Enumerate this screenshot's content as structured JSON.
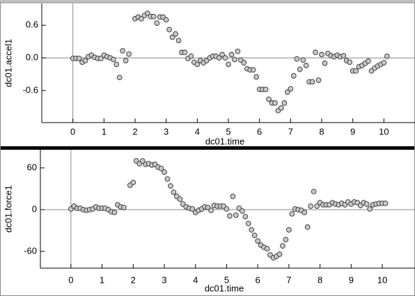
{
  "chart_data": [
    {
      "type": "scatter",
      "x_label": "dc01.time",
      "y_label": "dc01.accel1",
      "color": "#c8c8c8",
      "x": [
        0,
        0.1,
        0.2,
        0.3,
        0.4,
        0.5,
        0.6,
        0.7,
        0.8,
        0.9,
        1.0,
        1.1,
        1.2,
        1.3,
        1.4,
        1.5,
        1.6,
        1.7,
        1.8,
        2.0,
        2.1,
        2.2,
        2.3,
        2.4,
        2.5,
        2.6,
        2.7,
        2.8,
        2.9,
        3.0,
        3.1,
        3.2,
        3.3,
        3.4,
        3.5,
        3.6,
        3.7,
        3.8,
        3.9,
        4.0,
        4.1,
        4.2,
        4.3,
        4.4,
        4.5,
        4.6,
        4.7,
        4.8,
        4.9,
        5.0,
        5.1,
        5.2,
        5.3,
        5.4,
        5.5,
        5.6,
        5.7,
        5.8,
        5.9,
        6.0,
        6.1,
        6.2,
        6.3,
        6.4,
        6.5,
        6.6,
        6.7,
        6.8,
        6.9,
        7.0,
        7.1,
        7.2,
        7.3,
        7.4,
        7.5,
        7.6,
        7.7,
        7.8,
        7.9,
        8.0,
        8.1,
        8.2,
        8.3,
        8.4,
        8.5,
        8.6,
        8.7,
        8.8,
        8.9,
        9.0,
        9.1,
        9.2,
        9.3,
        9.4,
        9.5,
        9.6,
        9.7,
        9.8,
        9.9,
        10.0,
        10.1
      ],
      "values": [
        -0.01,
        -0.01,
        -0.01,
        -0.08,
        -0.05,
        0.02,
        0.05,
        0.01,
        -0.01,
        -0.01,
        0.05,
        0.02,
        0,
        -0.03,
        -0.12,
        -0.36,
        0.13,
        -0.05,
        0.07,
        0.72,
        0.75,
        0.72,
        0.78,
        0.82,
        0.76,
        0.76,
        0.64,
        0.75,
        0.75,
        0.7,
        0.52,
        0.38,
        0.44,
        0.32,
        0.1,
        0.1,
        -0.01,
        0.03,
        -0.08,
        -0.12,
        -0.05,
        -0.09,
        -0.05,
        0,
        0.03,
        0.03,
        0,
        0.06,
        0,
        -0.12,
        0.06,
        -0.03,
        0.12,
        -0.04,
        -0.09,
        -0.2,
        -0.22,
        -0.22,
        -0.35,
        -0.58,
        -0.58,
        -0.58,
        -0.76,
        -0.83,
        -0.83,
        -0.97,
        -0.92,
        -0.83,
        -0.63,
        -0.57,
        -0.33,
        -0.02,
        -0.21,
        -0.04,
        -0.14,
        -0.44,
        -0.44,
        0.1,
        -0.41,
        0.06,
        -0.1,
        0.08,
        0.04,
        0.02,
        0.05,
        0.02,
        0.04,
        -0.05,
        -0.08,
        -0.24,
        -0.24,
        -0.16,
        -0.14,
        -0.1,
        -0.06,
        -0.24,
        -0.19,
        -0.15,
        -0.12,
        -0.09,
        0.03
      ],
      "xlim": [
        -1.0,
        11.0
      ],
      "ylim": [
        -1.19,
        1.0
      ],
      "xticks": [
        0,
        1,
        2,
        3,
        4,
        5,
        6,
        7,
        8,
        9,
        10
      ],
      "yticks": [
        -0.6,
        {
          "value": 0,
          "label": "0.0"
        },
        0.6
      ]
    },
    {
      "type": "scatter",
      "x_label": "dc01.time",
      "y_label": "dc01.force1",
      "color": "#c8c8c8",
      "x": [
        0,
        0.1,
        0.2,
        0.3,
        0.4,
        0.5,
        0.6,
        0.7,
        0.8,
        0.9,
        1.0,
        1.1,
        1.2,
        1.3,
        1.4,
        1.5,
        1.6,
        1.7,
        1.9,
        2.0,
        2.1,
        2.2,
        2.3,
        2.4,
        2.5,
        2.6,
        2.7,
        2.8,
        2.9,
        3.0,
        3.1,
        3.2,
        3.3,
        3.4,
        3.5,
        3.6,
        3.7,
        3.8,
        3.9,
        4.0,
        4.1,
        4.2,
        4.3,
        4.4,
        4.5,
        4.6,
        4.7,
        4.8,
        4.9,
        5.0,
        5.1,
        5.2,
        5.3,
        5.4,
        5.5,
        5.6,
        5.7,
        5.8,
        5.9,
        6.0,
        6.1,
        6.2,
        6.3,
        6.4,
        6.5,
        6.6,
        6.7,
        6.8,
        6.9,
        7.0,
        7.1,
        7.2,
        7.3,
        7.4,
        7.5,
        7.6,
        7.7,
        7.8,
        7.9,
        8.0,
        8.1,
        8.2,
        8.3,
        8.4,
        8.5,
        8.6,
        8.7,
        8.8,
        8.9,
        9.0,
        9.1,
        9.2,
        9.3,
        9.4,
        9.5,
        9.6,
        9.7,
        9.8,
        9.9,
        10.0,
        10.1
      ],
      "values": [
        1,
        5,
        2,
        2,
        0,
        -1,
        0,
        1,
        4,
        2,
        2,
        2,
        0,
        -3,
        -4,
        7,
        4,
        3,
        35,
        39,
        70,
        66,
        70,
        65,
        66,
        64,
        65,
        61,
        59,
        54,
        44,
        34,
        25,
        19,
        15,
        8,
        4,
        2,
        1,
        -4,
        -1,
        1,
        4,
        3,
        -1,
        6,
        5,
        5,
        5,
        1,
        -9,
        19,
        -8,
        2,
        -2,
        -10,
        -20,
        -29,
        -37,
        -45,
        -51,
        -54,
        -56,
        -65,
        -69,
        -67,
        -64,
        -52,
        -43,
        -29,
        -6,
        1,
        0,
        -1,
        -4,
        -25,
        5,
        26,
        5,
        10,
        7,
        7,
        7,
        10,
        8,
        7,
        9,
        7,
        11,
        8,
        11,
        10,
        6,
        10,
        8,
        1,
        7,
        8,
        9,
        9,
        9
      ],
      "xlim": [
        -0.98,
        11.05
      ],
      "ylim": [
        -84,
        86
      ],
      "xticks": [
        0,
        1,
        2,
        3,
        4,
        5,
        6,
        7,
        8,
        9,
        10
      ],
      "yticks": [
        -60,
        0,
        60
      ]
    }
  ]
}
